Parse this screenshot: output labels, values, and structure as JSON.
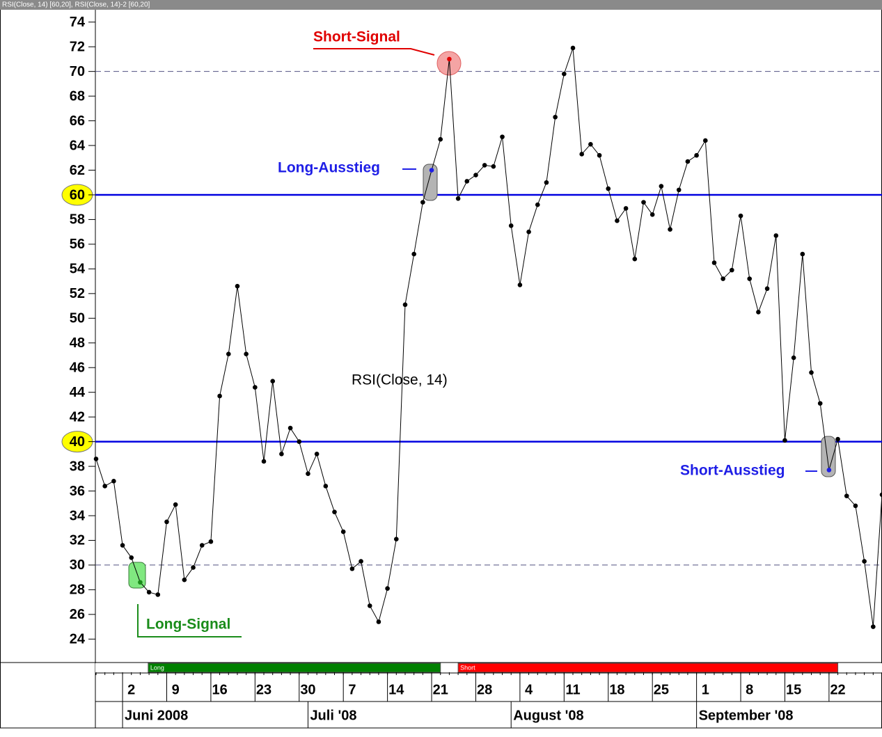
{
  "header": "RSI(Close, 14) [60,20],  RSI(Close, 14)-2 [60,20]",
  "chart_data": {
    "type": "line",
    "series_label": "RSI(Close, 14)",
    "categories": [
      null,
      null,
      null,
      null,
      "2",
      null,
      null,
      null,
      null,
      "9",
      null,
      null,
      null,
      null,
      "16",
      null,
      null,
      null,
      null,
      "23",
      null,
      null,
      null,
      null,
      "30",
      null,
      null,
      null,
      null,
      "7",
      null,
      null,
      null,
      null,
      "14",
      null,
      null,
      null,
      null,
      "21",
      null,
      null,
      null,
      null,
      "28",
      null,
      null,
      null,
      null,
      "4",
      null,
      null,
      null,
      null,
      "11",
      null,
      null,
      null,
      null,
      "18",
      null,
      null,
      null,
      null,
      "25",
      null,
      null,
      null,
      null,
      "1",
      null,
      null,
      null,
      null,
      "8",
      null,
      null,
      null,
      null,
      "15",
      null,
      null,
      null,
      null,
      "22",
      null,
      null,
      null,
      null,
      null
    ],
    "months": [
      "Juni 2008",
      "Juli '08",
      "August '08",
      "September '08"
    ],
    "series": [
      {
        "color": "#000000",
        "values": [
          38.6,
          36.4,
          36.8,
          31.6,
          30.6,
          28.6,
          27.8,
          27.6,
          33.5,
          34.9,
          28.8,
          29.8,
          31.6,
          31.9,
          43.7,
          47.1,
          52.6,
          47.1,
          44.4,
          38.4,
          44.9,
          39.0,
          41.1,
          40.0,
          37.4,
          39.0,
          36.4,
          34.3,
          32.7,
          29.7,
          30.3,
          26.7,
          25.4,
          28.1,
          32.1,
          51.1,
          55.2,
          59.4,
          62.0,
          64.5,
          71.0,
          59.7,
          61.1,
          61.6,
          62.4,
          62.3,
          64.7,
          57.5,
          52.7,
          57.0,
          59.2,
          61.0,
          66.3,
          69.8,
          71.9,
          63.3,
          64.1,
          63.2,
          60.5,
          57.9,
          58.9,
          54.8,
          59.4,
          58.4,
          60.7,
          57.2,
          60.4,
          62.7,
          63.2,
          64.4,
          54.5,
          53.2,
          53.9,
          58.3,
          53.2,
          50.5,
          52.4,
          56.7,
          40.1,
          46.8,
          55.2,
          45.6,
          43.1,
          37.7,
          40.2,
          35.6,
          34.8,
          30.3,
          25.0,
          35.7
        ],
        "marker_colors": [
          "#000",
          "#000",
          "#000",
          "#000",
          "#000",
          "#1a8c1a",
          "#000",
          "#000",
          "#000",
          "#000",
          "#000",
          "#000",
          "#000",
          "#000",
          "#000",
          "#000",
          "#000",
          "#000",
          "#000",
          "#000",
          "#000",
          "#000",
          "#000",
          "#000",
          "#000",
          "#000",
          "#000",
          "#000",
          "#000",
          "#000",
          "#000",
          "#000",
          "#000",
          "#000",
          "#000",
          "#000",
          "#000",
          "#000",
          "#1e1ee6",
          "#000",
          "#e00000",
          "#000",
          "#000",
          "#000",
          "#000",
          "#000",
          "#000",
          "#000",
          "#000",
          "#000",
          "#000",
          "#000",
          "#000",
          "#000",
          "#000",
          "#000",
          "#000",
          "#000",
          "#000",
          "#000",
          "#000",
          "#000",
          "#000",
          "#000",
          "#000",
          "#000",
          "#000",
          "#000",
          "#000",
          "#000",
          "#000",
          "#000",
          "#000",
          "#000",
          "#000",
          "#000",
          "#000",
          "#000",
          "#000",
          "#000",
          "#000",
          "#000",
          "#000",
          "#1e1ee6",
          "#000",
          "#000",
          "#000",
          "#000",
          "#000",
          "#000"
        ]
      }
    ],
    "ylim": [
      22.1,
      75.0
    ],
    "yticks": [
      24,
      26,
      28,
      30,
      32,
      34,
      36,
      38,
      40,
      42,
      44,
      46,
      48,
      50,
      52,
      54,
      56,
      58,
      60,
      62,
      64,
      66,
      68,
      70,
      72,
      74
    ],
    "hlines": [
      {
        "value": 70,
        "style": "dashed",
        "color": "#505080"
      },
      {
        "value": 60,
        "style": "solid",
        "color": "#0000e0",
        "highlight": "#ffff00"
      },
      {
        "value": 40,
        "style": "solid",
        "color": "#0000e0",
        "highlight": "#ffff00"
      },
      {
        "value": 30,
        "style": "dashed",
        "color": "#505080"
      }
    ],
    "position_strip": [
      {
        "label": "Long",
        "color": "#008000"
      },
      {
        "label": "Short",
        "color": "#ff0000"
      }
    ],
    "annotations": {
      "short_signal": "Short-Signal",
      "long_exit": "Long-Ausstieg",
      "long_signal": "Long-Signal",
      "short_exit": "Short-Ausstieg"
    }
  }
}
